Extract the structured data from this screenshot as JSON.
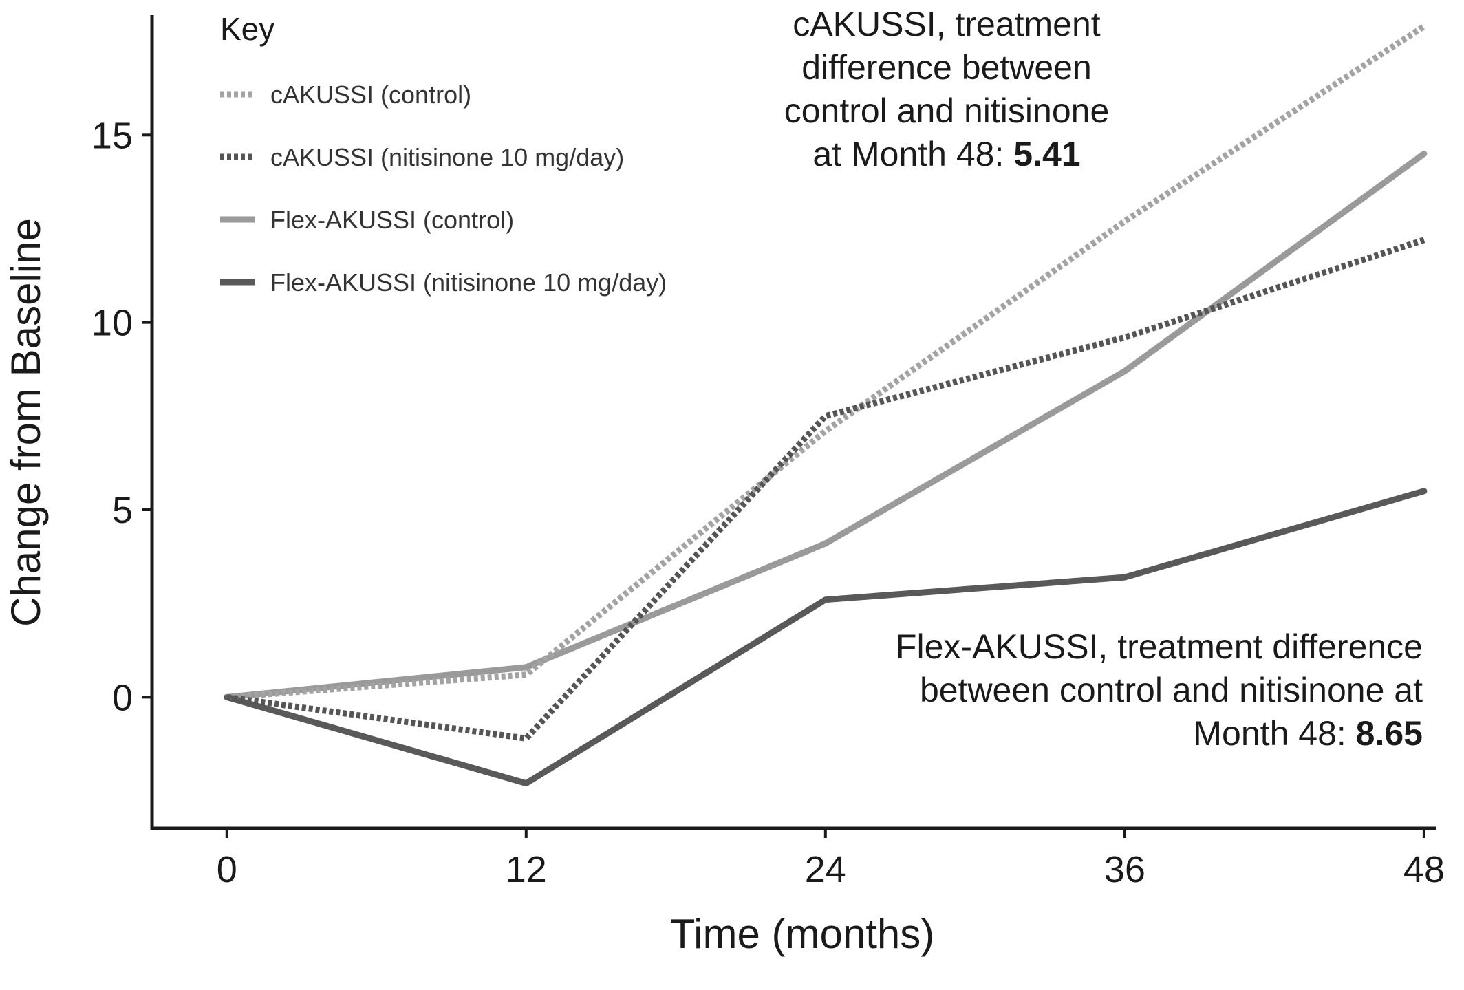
{
  "chart_data": {
    "type": "line",
    "xlabel": "Time (months)",
    "ylabel": "Change from Baseline",
    "x": [
      0,
      12,
      24,
      36,
      48
    ],
    "xticks": [
      0,
      12,
      24,
      36,
      48
    ],
    "xlim": [
      -3,
      48.5
    ],
    "yticks": [
      0,
      5,
      10,
      15
    ],
    "ylim": [
      -3.5,
      18.2
    ],
    "grid": false,
    "legend": {
      "title": "Key",
      "placement": "top-left"
    },
    "series": [
      {
        "name": "cAKUSSI (control)",
        "values": [
          0,
          0.6,
          7.1,
          12.7,
          17.9
        ],
        "color": "#a3a3a3",
        "style": "dotted"
      },
      {
        "name": "cAKUSSI (nitisinone 10 mg/day)",
        "values": [
          0,
          -1.1,
          7.5,
          9.6,
          12.2
        ],
        "color": "#555555",
        "style": "dotted"
      },
      {
        "name": "Flex-AKUSSI (control)",
        "values": [
          0,
          0.8,
          4.1,
          8.7,
          14.5
        ],
        "color": "#9a9a9a",
        "style": "solid"
      },
      {
        "name": "Flex-AKUSSI (nitisinone 10 mg/day)",
        "values": [
          0,
          -2.3,
          2.6,
          3.2,
          5.5
        ],
        "color": "#595959",
        "style": "solid"
      }
    ],
    "annotations": [
      {
        "lines": [
          "cAKUSSI, treatment",
          "difference between",
          "control and nitisinone",
          "at Month 48: "
        ],
        "value": "5.41",
        "placement": "top-right"
      },
      {
        "lines": [
          "Flex-AKUSSI, treatment difference",
          "between control and nitisinone at",
          "Month 48: "
        ],
        "value": "8.65",
        "placement": "bottom-right"
      }
    ]
  }
}
